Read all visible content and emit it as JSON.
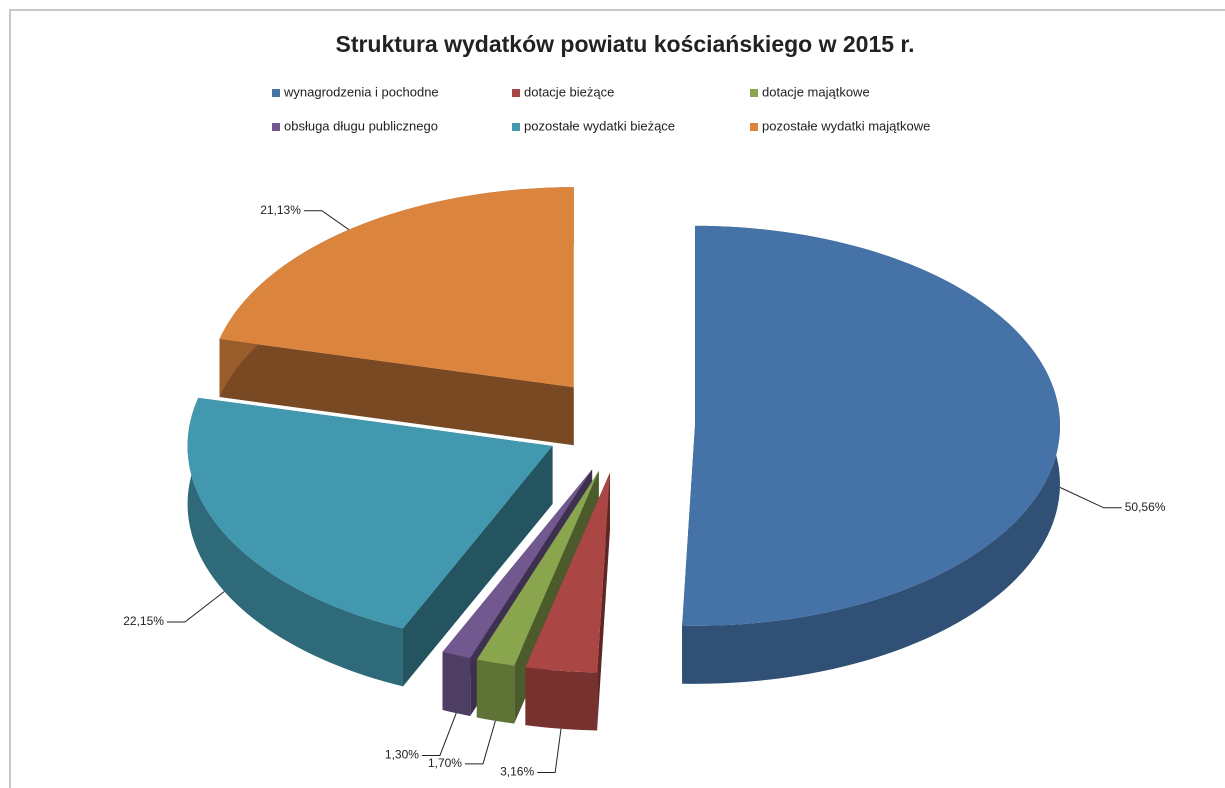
{
  "chart_data": {
    "type": "pie",
    "title": "Struktura wydatków powiatu kościańskiego w 2015 r.",
    "categories": [
      "wynagrodzenia i pochodne",
      "dotacje bieżące",
      "dotacje majątkowe",
      "obsługa długu publicznego",
      "pozostałe wydatki bieżące",
      "pozostałe wydatki majątkowe"
    ],
    "values": [
      50.56,
      3.16,
      1.7,
      1.3,
      22.15,
      21.13
    ],
    "value_labels": [
      "50,56%",
      "3,16%",
      "1,70%",
      "1,30%",
      "22,15%",
      "21,13%"
    ],
    "colors": [
      "#4572a7",
      "#aa4643",
      "#89a54e",
      "#71588f",
      "#4198af",
      "#db843d"
    ],
    "legend": "top"
  }
}
